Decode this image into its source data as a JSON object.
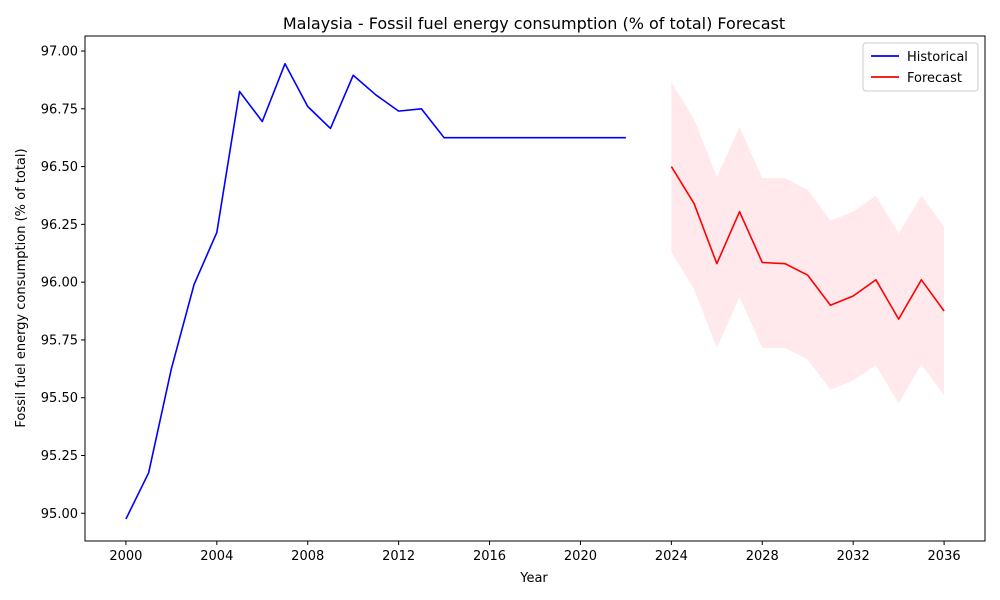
{
  "chart_data": {
    "type": "line",
    "title": "Malaysia - Fossil fuel energy consumption (% of total) Forecast",
    "xlabel": "Year",
    "ylabel": "Fossil fuel energy consumption (% of total)",
    "xlim": [
      1998.2,
      2037.8
    ],
    "ylim": [
      94.88,
      97.065
    ],
    "x_ticks": [
      2000,
      2004,
      2008,
      2012,
      2016,
      2020,
      2024,
      2028,
      2032,
      2036
    ],
    "y_ticks": [
      95.0,
      95.25,
      95.5,
      95.75,
      96.0,
      96.25,
      96.5,
      96.75,
      97.0
    ],
    "grid": false,
    "legend_position": "upper-right",
    "series": [
      {
        "name": "Historical",
        "color": "#0000ff",
        "x": [
          2000,
          2001,
          2002,
          2003,
          2004,
          2005,
          2006,
          2007,
          2008,
          2009,
          2010,
          2011,
          2012,
          2013,
          2014,
          2015,
          2016,
          2017,
          2018,
          2019,
          2020,
          2021,
          2022
        ],
        "y": [
          94.975,
          95.175,
          95.625,
          95.99,
          96.215,
          96.825,
          96.695,
          96.945,
          96.76,
          96.665,
          96.895,
          96.81,
          96.74,
          96.75,
          96.625,
          96.625,
          96.625,
          96.625,
          96.625,
          96.625,
          96.625,
          96.625,
          96.625
        ]
      },
      {
        "name": "Forecast",
        "color": "#ff0000",
        "x": [
          2024,
          2025,
          2026,
          2027,
          2028,
          2029,
          2030,
          2031,
          2032,
          2033,
          2034,
          2035,
          2036
        ],
        "y": [
          96.5,
          96.34,
          96.08,
          96.305,
          96.085,
          96.08,
          96.03,
          95.9,
          95.94,
          96.01,
          95.84,
          96.01,
          95.875
        ],
        "lower": [
          96.13,
          95.97,
          95.715,
          95.935,
          95.715,
          95.715,
          95.665,
          95.535,
          95.575,
          95.64,
          95.475,
          95.645,
          95.51
        ],
        "upper": [
          96.865,
          96.705,
          96.455,
          96.67,
          96.45,
          96.45,
          96.4,
          96.265,
          96.305,
          96.375,
          96.21,
          96.375,
          96.24
        ],
        "band_color": "#ffc0cb"
      }
    ]
  }
}
